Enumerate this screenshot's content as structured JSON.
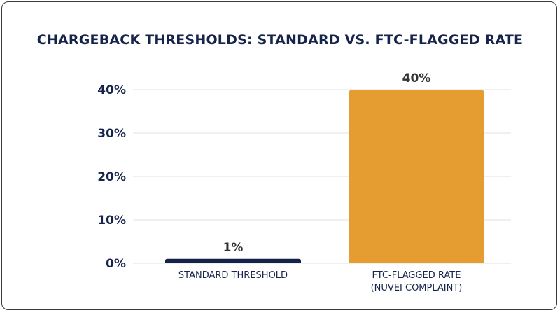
{
  "chart_data": {
    "type": "bar",
    "title": "CHARGEBACK THRESHOLDS: STANDARD VS. FTC-FLAGGED RATE",
    "categories": [
      [
        "STANDARD THRESHOLD"
      ],
      [
        "FTC-FLAGGED RATE",
        "(NUVEI COMPLAINT)"
      ]
    ],
    "values": [
      1,
      40
    ],
    "data_labels": [
      "1%",
      "40%"
    ],
    "bar_colors": [
      "#15234a",
      "#e59c30"
    ],
    "yticks": [
      0,
      10,
      20,
      30,
      40
    ],
    "ytick_labels": [
      "0%",
      "10%",
      "20%",
      "30%",
      "40%"
    ],
    "ylim": [
      0,
      40
    ],
    "grid": true,
    "legend": "none",
    "xlabel": "",
    "ylabel": ""
  }
}
